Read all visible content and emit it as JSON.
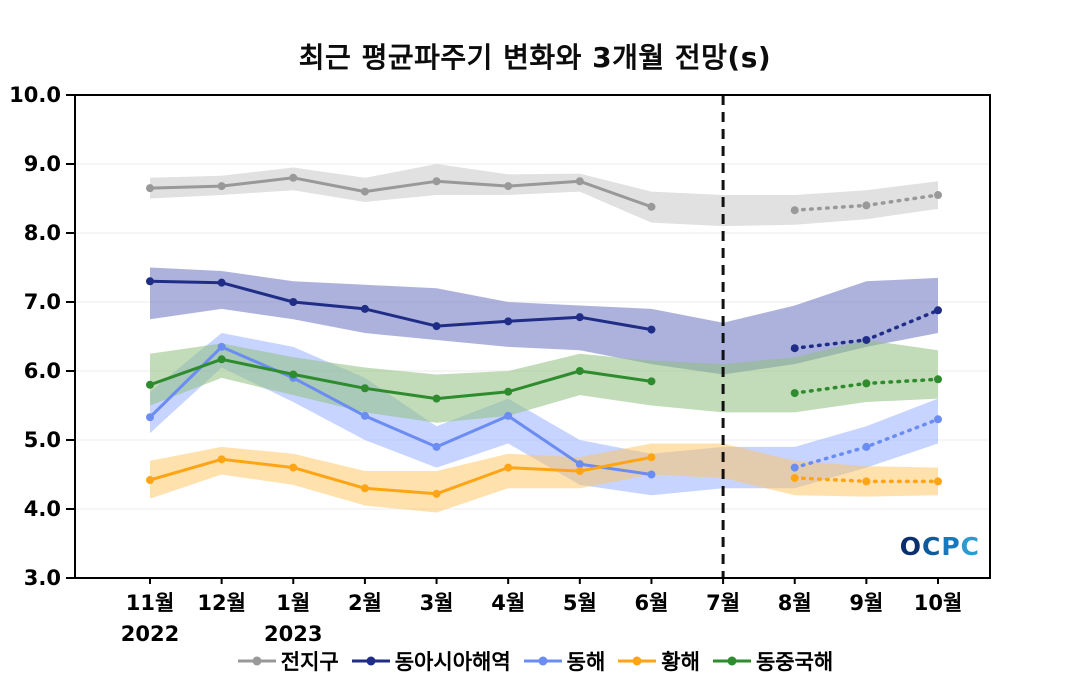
{
  "branding": {
    "logo_text": "OCPC",
    "logo_colors": [
      "#0a2f6e",
      "#0d5a9c",
      "#1678bd",
      "#2e9ad2"
    ]
  },
  "chart_data": {
    "type": "line",
    "title": "최근 평균파주기 변화와 3개월 전망(s)",
    "unit": "s",
    "categories": [
      "11월",
      "12월",
      "1월",
      "2월",
      "3월",
      "4월",
      "5월",
      "6월",
      "7월",
      "8월",
      "9월",
      "10월"
    ],
    "x_sublabels": [
      {
        "index": 0,
        "label": "2022"
      },
      {
        "index": 2,
        "label": "2023"
      }
    ],
    "ylim": [
      3.0,
      10.0
    ],
    "yticks": [
      "3.0",
      "4.0",
      "5.0",
      "6.0",
      "7.0",
      "8.0",
      "9.0",
      "10.0"
    ],
    "grid": "faint-horizontal",
    "legend_position": "bottom",
    "divider_index": 8,
    "forecast_start_index": 9,
    "series": [
      {
        "key": "global",
        "name": "전지구",
        "color": "#999999",
        "band_color": "#c9c9c9",
        "band_opacity": 0.55,
        "values": [
          8.65,
          8.68,
          8.8,
          8.6,
          8.75,
          8.68,
          8.75,
          8.38,
          null,
          8.33,
          8.4,
          8.55
        ],
        "band_upper": [
          8.8,
          8.83,
          8.95,
          8.8,
          9.0,
          8.85,
          8.86,
          8.6,
          8.55,
          8.55,
          8.62,
          8.75
        ],
        "band_lower": [
          8.5,
          8.55,
          8.62,
          8.45,
          8.55,
          8.55,
          8.6,
          8.15,
          8.1,
          8.12,
          8.2,
          8.35
        ]
      },
      {
        "key": "east-asia",
        "name": "동아시아해역",
        "color": "#1f2d87",
        "band_color": "#6a72c0",
        "band_opacity": 0.55,
        "values": [
          7.3,
          7.28,
          7.0,
          6.9,
          6.65,
          6.72,
          6.78,
          6.6,
          null,
          6.33,
          6.45,
          6.88
        ],
        "band_upper": [
          7.5,
          7.45,
          7.3,
          7.25,
          7.2,
          7.0,
          6.95,
          6.9,
          6.7,
          6.95,
          7.3,
          7.35
        ],
        "band_lower": [
          6.75,
          6.9,
          6.75,
          6.55,
          6.45,
          6.35,
          6.3,
          6.1,
          5.95,
          6.1,
          6.35,
          6.55
        ]
      },
      {
        "key": "east-sea",
        "name": "동해",
        "color": "#6b8cf2",
        "band_color": "#8faaff",
        "band_opacity": 0.5,
        "values": [
          5.33,
          6.35,
          5.9,
          5.35,
          4.9,
          5.35,
          4.65,
          4.5,
          null,
          4.6,
          4.9,
          5.3
        ],
        "band_upper": [
          5.7,
          6.55,
          6.35,
          5.9,
          5.2,
          5.6,
          5.0,
          4.8,
          4.9,
          4.9,
          5.2,
          5.6
        ],
        "band_lower": [
          5.1,
          6.05,
          5.55,
          5.0,
          4.6,
          4.95,
          4.35,
          4.2,
          4.3,
          4.3,
          4.6,
          4.95
        ]
      },
      {
        "key": "yellow-sea",
        "name": "황해",
        "color": "#ffa515",
        "band_color": "#ffc35c",
        "band_opacity": 0.5,
        "values": [
          4.42,
          4.72,
          4.6,
          4.3,
          4.22,
          4.6,
          4.55,
          4.75,
          null,
          4.45,
          4.4,
          4.4
        ],
        "band_upper": [
          4.7,
          4.9,
          4.8,
          4.55,
          4.55,
          4.8,
          4.75,
          4.95,
          4.95,
          4.7,
          4.62,
          4.6
        ],
        "band_lower": [
          4.15,
          4.5,
          4.35,
          4.05,
          3.95,
          4.3,
          4.3,
          4.5,
          4.45,
          4.2,
          4.18,
          4.2
        ]
      },
      {
        "key": "east-china-sea",
        "name": "동중국해",
        "color": "#2e8b2e",
        "band_color": "#8fbf7f",
        "band_opacity": 0.55,
        "values": [
          5.8,
          6.17,
          5.95,
          5.75,
          5.6,
          5.7,
          6.0,
          5.85,
          null,
          5.68,
          5.82,
          5.88
        ],
        "band_upper": [
          6.25,
          6.4,
          6.2,
          6.05,
          5.95,
          6.0,
          6.25,
          6.15,
          6.1,
          6.2,
          6.45,
          6.3
        ],
        "band_lower": [
          5.5,
          5.9,
          5.65,
          5.4,
          5.25,
          5.35,
          5.65,
          5.5,
          5.4,
          5.4,
          5.55,
          5.6
        ]
      }
    ]
  }
}
